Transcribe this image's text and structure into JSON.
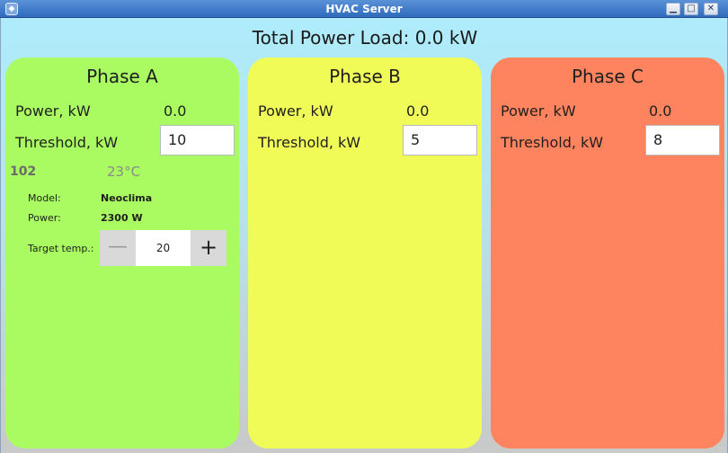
{
  "window": {
    "title": "HVAC Server",
    "controls": {
      "minimize": "▁",
      "maximize": "□",
      "close": "✕"
    }
  },
  "total": {
    "text": "Total Power Load: 0.0 kW"
  },
  "phases": [
    {
      "title": "Phase A",
      "power_label": "Power, kW",
      "power_value": "0.0",
      "threshold_label": "Threshold, kW",
      "threshold_value": "10",
      "color": "#a9fb61",
      "device": {
        "id": "102",
        "temperature": "23°C",
        "model_label": "Model:",
        "model_value": "Neoclima",
        "power_label": "Power:",
        "power_value": "2300 W",
        "target_label": "Target temp.:",
        "target_value": "20",
        "dec_symbol": "—",
        "inc_symbol": "+"
      }
    },
    {
      "title": "Phase B",
      "power_label": "Power, kW",
      "power_value": "0.0",
      "threshold_label": "Threshold, kW",
      "threshold_value": "5",
      "color": "#f1fb57"
    },
    {
      "title": "Phase C",
      "power_label": "Power, kW",
      "power_value": "0.0",
      "threshold_label": "Threshold, kW",
      "threshold_value": "8",
      "color": "#fe845f"
    }
  ],
  "icons": {
    "app": "app-icon"
  }
}
